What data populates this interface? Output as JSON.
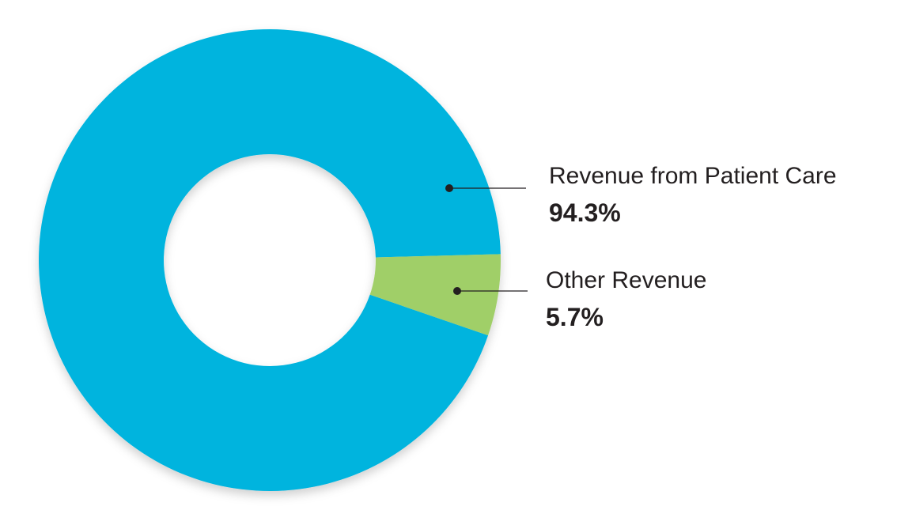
{
  "chart_data": {
    "type": "pie",
    "donut": true,
    "slices": [
      {
        "label": "Revenue from Patient Care",
        "value": 94.3,
        "value_label": "94.3%",
        "color": "#00b4de"
      },
      {
        "label": "Other Revenue",
        "value": 5.7,
        "value_label": "5.7%",
        "color": "#a0cf67"
      }
    ]
  }
}
